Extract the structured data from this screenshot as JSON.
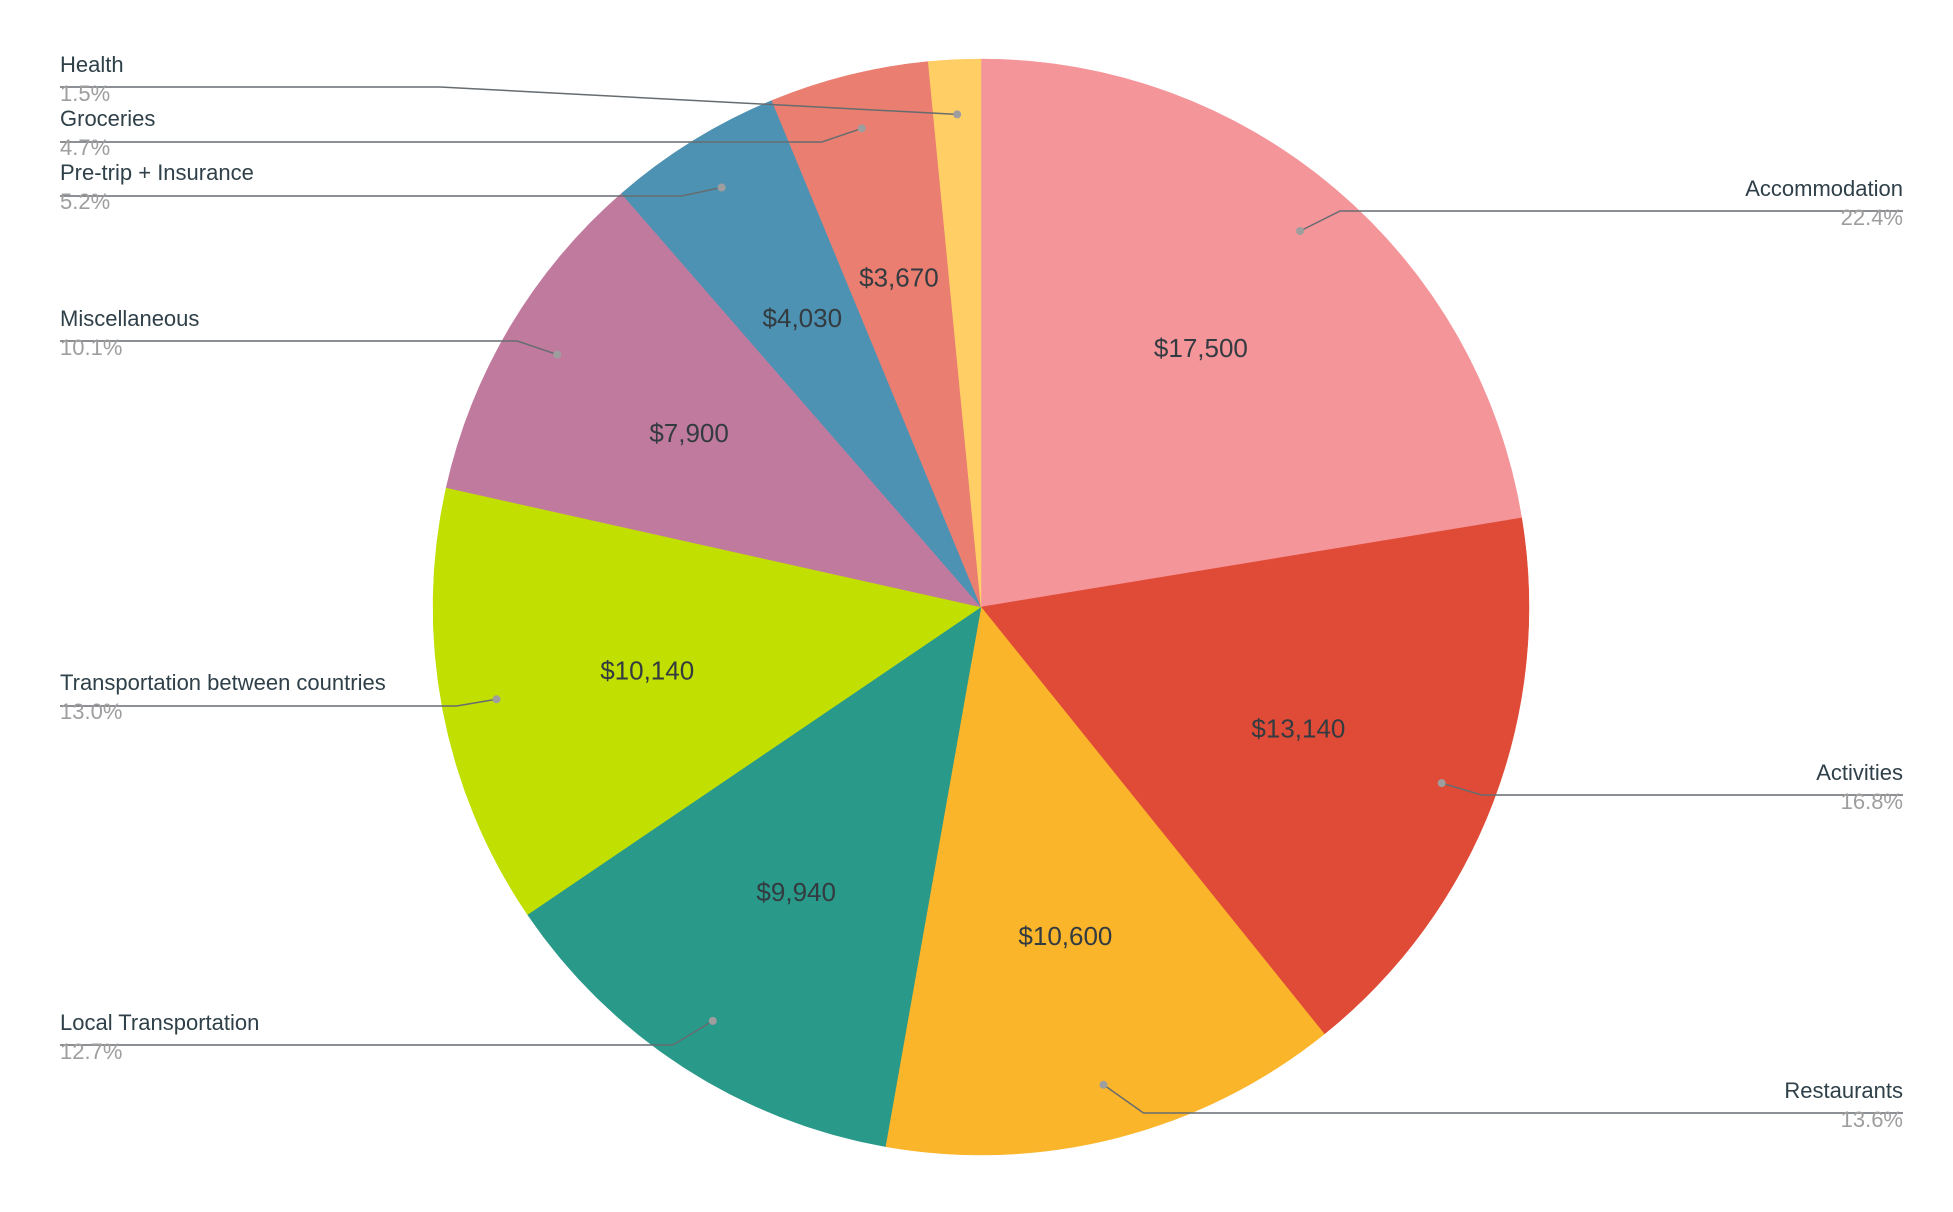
{
  "chart_data": {
    "type": "pie",
    "title": "",
    "start_angle_deg": 0,
    "direction": "clockwise",
    "slices": [
      {
        "label": "Accommodation",
        "value": 17500,
        "value_label": "$17,500",
        "percent_label": "22.4%",
        "color": "#f4959a",
        "label_side": "right"
      },
      {
        "label": "Activities",
        "value": 13140,
        "value_label": "$13,140",
        "percent_label": "16.8%",
        "color": "#e04b37",
        "label_side": "right"
      },
      {
        "label": "Restaurants",
        "value": 10600,
        "value_label": "$10,600",
        "percent_label": "13.6%",
        "color": "#fbb52b",
        "label_side": "right"
      },
      {
        "label": "Local Transportation",
        "value": 9940,
        "value_label": "$9,940",
        "percent_label": "12.7%",
        "color": "#29998a",
        "label_side": "left"
      },
      {
        "label": "Transportation between countries",
        "value": 10140,
        "value_label": "$10,140",
        "percent_label": "13.0%",
        "color": "#c1df00",
        "label_side": "left"
      },
      {
        "label": "Miscellaneous",
        "value": 7900,
        "value_label": "$7,900",
        "percent_label": "10.1%",
        "color": "#c07a9e",
        "label_side": "left"
      },
      {
        "label": "Pre-trip + Insurance",
        "value": 4030,
        "value_label": "$4,030",
        "percent_label": "5.2%",
        "color": "#4d92b2",
        "label_side": "left"
      },
      {
        "label": "Groceries",
        "value": 3670,
        "value_label": "$3,670",
        "percent_label": "4.7%",
        "color": "#ea7e70",
        "label_side": "left"
      },
      {
        "label": "Health",
        "value": 1200,
        "value_label": "",
        "percent_label": "1.5%",
        "color": "#ffcf66",
        "label_side": "left"
      }
    ]
  }
}
